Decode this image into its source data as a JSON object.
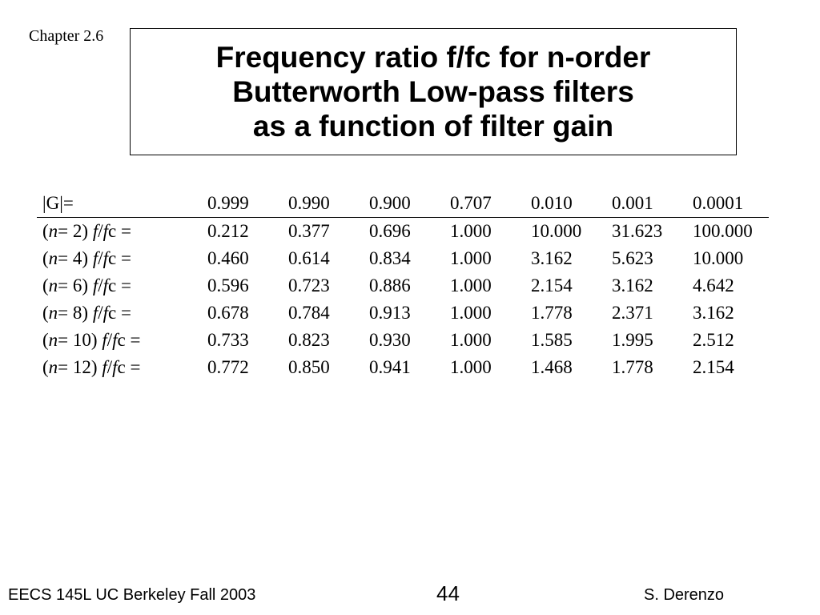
{
  "slide": {
    "chapter": "Chapter 2.6",
    "title_lines": [
      "Frequency ratio f/fc for n-order",
      "Butterworth Low-pass filters",
      "as a function of filter gain"
    ]
  },
  "table": {
    "header_label": "|G|=",
    "gains": [
      "0.999",
      "0.990",
      "0.900",
      "0.707",
      "0.010",
      "0.001",
      "0.0001"
    ],
    "rows": [
      {
        "n": "2",
        "values": [
          "0.212",
          "0.377",
          "0.696",
          "1.000",
          "10.000",
          "31.623",
          "100.000"
        ]
      },
      {
        "n": "4",
        "values": [
          "0.460",
          "0.614",
          "0.834",
          "1.000",
          "3.162",
          "5.623",
          "10.000"
        ]
      },
      {
        "n": "6",
        "values": [
          "0.596",
          "0.723",
          "0.886",
          "1.000",
          "2.154",
          "3.162",
          "4.642"
        ]
      },
      {
        "n": "8",
        "values": [
          "0.678",
          "0.784",
          "0.913",
          "1.000",
          "1.778",
          "2.371",
          "3.162"
        ]
      },
      {
        "n": "10",
        "values": [
          "0.733",
          "0.823",
          "0.930",
          "1.000",
          "1.585",
          "1.995",
          "2.512"
        ]
      },
      {
        "n": "12",
        "values": [
          "0.772",
          "0.850",
          "0.941",
          "1.000",
          "1.468",
          "1.778",
          "2.154"
        ]
      }
    ]
  },
  "footer": {
    "left": "EECS 145L UC Berkeley Fall 2003",
    "page_number": "44",
    "right": "S. Derenzo"
  }
}
